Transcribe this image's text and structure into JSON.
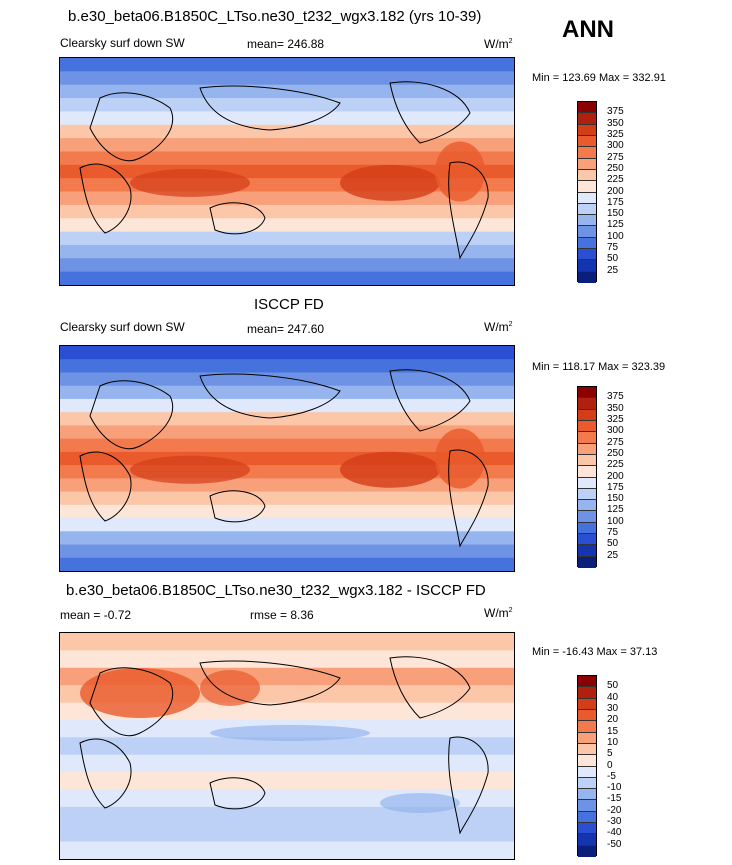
{
  "chart_data": [
    {
      "type": "heatmap",
      "title": "b.e30_beta06.B1850C_LTso.ne30_t232_wgx3.182 (yrs 10-39)",
      "variable": "Clearsky surf down SW",
      "mean_text": "mean= 246.88",
      "units": "W/m",
      "units_sup": "2",
      "minmax_text": "Min = 123.69 Max = 332.91",
      "colorbar_levels": [
        "375",
        "350",
        "325",
        "300",
        "275",
        "250",
        "225",
        "200",
        "175",
        "150",
        "125",
        "100",
        "75",
        "50",
        "25"
      ],
      "colorbar_colors": [
        "#8b0000",
        "#b0200e",
        "#d33d18",
        "#e95a2c",
        "#f37a4c",
        "#f8a07a",
        "#fcc6a8",
        "#fde6d8",
        "#dfe9fb",
        "#bcd1f5",
        "#96b5ee",
        "#6f93e4",
        "#4672de",
        "#2a4fd2",
        "#1535b0",
        "#0a1f7a"
      ]
    },
    {
      "type": "heatmap",
      "title": "ISCCP FD",
      "variable": "Clearsky surf down SW",
      "mean_text": "mean= 247.60",
      "units": "W/m",
      "units_sup": "2",
      "minmax_text": "Min = 118.17 Max = 323.39",
      "colorbar_levels": [
        "375",
        "350",
        "325",
        "300",
        "275",
        "250",
        "225",
        "200",
        "175",
        "150",
        "125",
        "100",
        "75",
        "50",
        "25"
      ],
      "colorbar_colors": [
        "#8b0000",
        "#b0200e",
        "#d33d18",
        "#e95a2c",
        "#f37a4c",
        "#f8a07a",
        "#fcc6a8",
        "#fde6d8",
        "#dfe9fb",
        "#bcd1f5",
        "#96b5ee",
        "#6f93e4",
        "#4672de",
        "#2a4fd2",
        "#1535b0",
        "#0a1f7a"
      ]
    },
    {
      "type": "heatmap",
      "title": "b.e30_beta06.B1850C_LTso.ne30_t232_wgx3.182 - ISCCP FD",
      "mean_text": "mean =  -0.72",
      "rmse_text": "rmse =   8.36",
      "units": "W/m",
      "units_sup": "2",
      "minmax_text": "Min = -16.43 Max =  37.13",
      "colorbar_levels": [
        "50",
        "40",
        "30",
        "20",
        "15",
        "10",
        "5",
        "0",
        "-5",
        "-10",
        "-15",
        "-20",
        "-30",
        "-40",
        "-50"
      ],
      "colorbar_colors": [
        "#8b0000",
        "#b0200e",
        "#d33d18",
        "#e95a2c",
        "#f37a4c",
        "#f8a07a",
        "#fcc6a8",
        "#fde6d8",
        "#dfe9fb",
        "#bcd1f5",
        "#96b5ee",
        "#6f93e4",
        "#4672de",
        "#2a4fd2",
        "#1535b0",
        "#0a1f7a"
      ]
    }
  ],
  "season": "ANN"
}
